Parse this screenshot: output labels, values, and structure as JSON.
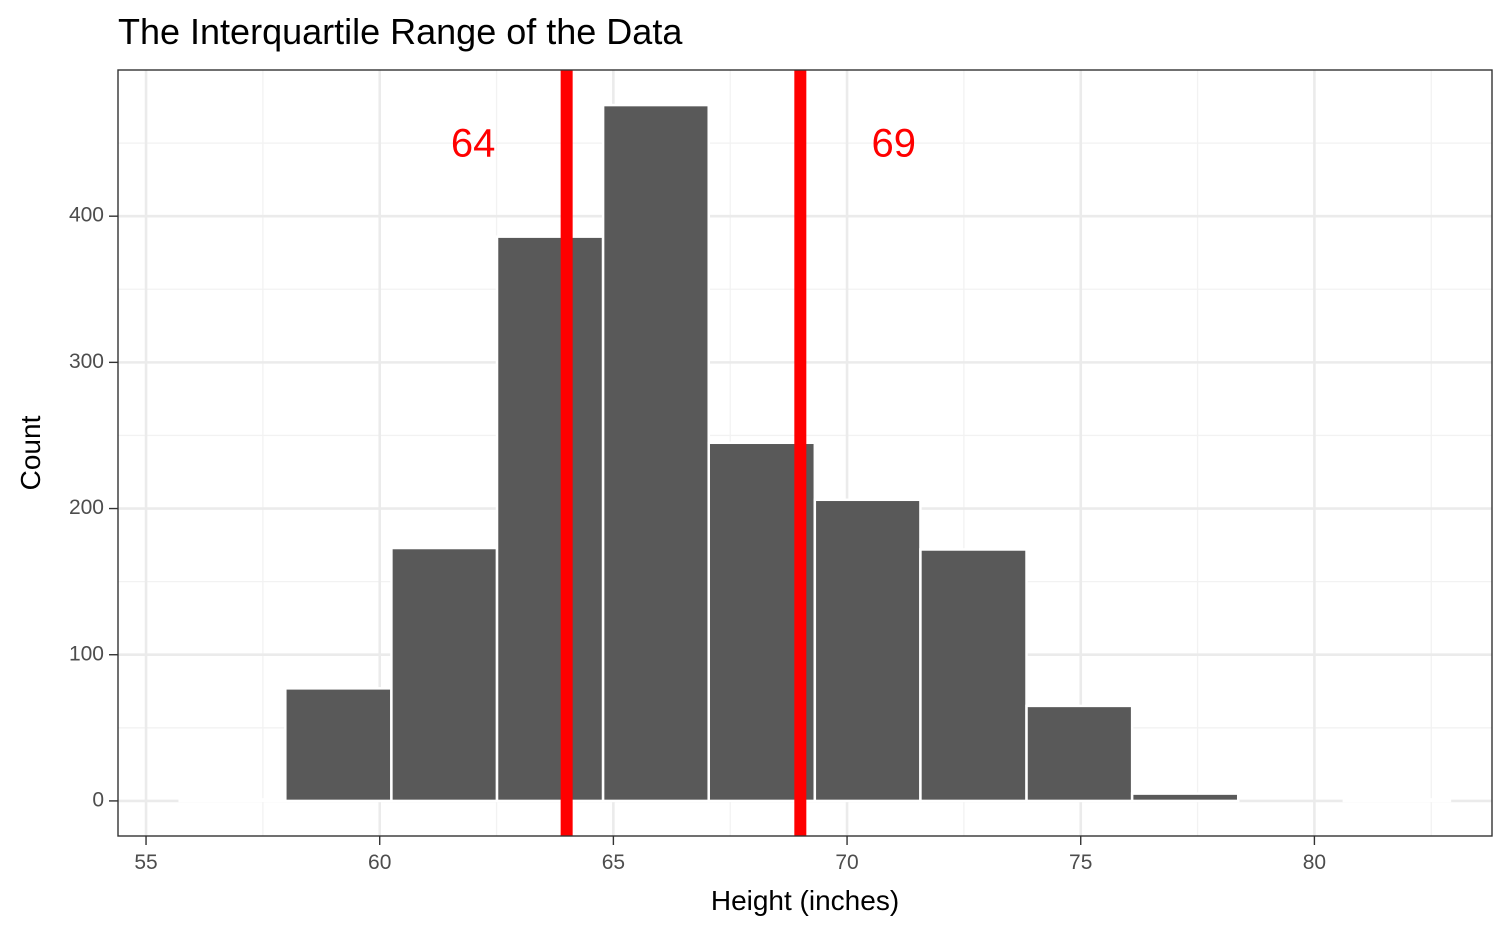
{
  "chart_data": {
    "type": "bar",
    "title": "The Interquartile Range of the Data",
    "xlabel": "Height (inches)",
    "ylabel": "Count",
    "xlim": [
      54.4,
      83.8
    ],
    "ylim": [
      -24,
      500
    ],
    "x_ticks": [
      55,
      60,
      65,
      70,
      75,
      80
    ],
    "y_ticks": [
      0,
      100,
      200,
      300,
      400
    ],
    "bins": [
      {
        "x0": 53.45,
        "x1": 55.72,
        "count": 0
      },
      {
        "x0": 55.72,
        "x1": 57.98,
        "count": 1
      },
      {
        "x0": 57.98,
        "x1": 60.25,
        "count": 77
      },
      {
        "x0": 60.25,
        "x1": 62.51,
        "count": 173
      },
      {
        "x0": 62.51,
        "x1": 64.78,
        "count": 386
      },
      {
        "x0": 64.78,
        "x1": 67.04,
        "count": 476
      },
      {
        "x0": 67.04,
        "x1": 69.31,
        "count": 245
      },
      {
        "x0": 69.31,
        "x1": 71.57,
        "count": 206
      },
      {
        "x0": 71.57,
        "x1": 73.84,
        "count": 172
      },
      {
        "x0": 73.84,
        "x1": 76.1,
        "count": 65
      },
      {
        "x0": 76.1,
        "x1": 78.37,
        "count": 5
      },
      {
        "x0": 78.37,
        "x1": 80.63,
        "count": 0
      },
      {
        "x0": 80.63,
        "x1": 82.9,
        "count": 1
      }
    ],
    "bar_color": "#595959",
    "grid": true,
    "reference_lines": [
      {
        "x": 64,
        "label": "64",
        "label_x": 62,
        "label_y": 448
      },
      {
        "x": 69,
        "label": "69",
        "label_x": 71,
        "label_y": 448
      }
    ],
    "reference_color": "#ff0000"
  }
}
